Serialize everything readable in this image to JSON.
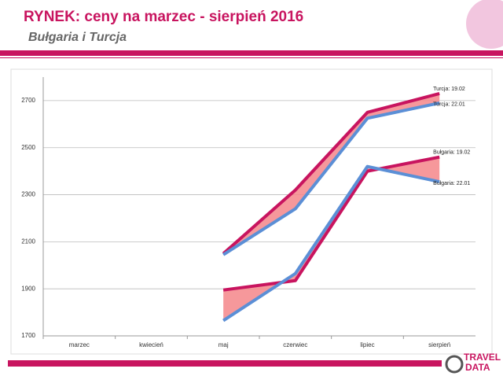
{
  "header": {
    "title": "RYNEK: ceny na marzec - sierpień 2016",
    "subtitle": "Bułgaria i Turcja"
  },
  "chart_data": {
    "type": "line",
    "categories": [
      "marzec",
      "kwiecień",
      "maj",
      "czerwiec",
      "lipiec",
      "sierpień"
    ],
    "series": [
      {
        "name": "Turcja: 19.02",
        "color": "#c8145f",
        "values": [
          null,
          null,
          2050,
          2320,
          2650,
          2730
        ]
      },
      {
        "name": "Turcja: 22.01",
        "color": "#5b8fd6",
        "values": [
          null,
          null,
          2045,
          2240,
          2625,
          2690
        ]
      },
      {
        "name": "Bułgaria: 19.02",
        "color": "#c8145f",
        "values": [
          null,
          null,
          1895,
          1935,
          2400,
          2460
        ]
      },
      {
        "name": "Bułgaria: 22.01",
        "color": "#5b8fd6",
        "values": [
          null,
          null,
          1765,
          1965,
          2420,
          2355
        ]
      }
    ],
    "ylim": [
      1700,
      2800
    ],
    "yticks": [
      1700,
      1900,
      2100,
      2300,
      2500,
      2700
    ],
    "grid": true
  },
  "logo": {
    "line1": "TRAVEL",
    "line2": "DATA"
  }
}
